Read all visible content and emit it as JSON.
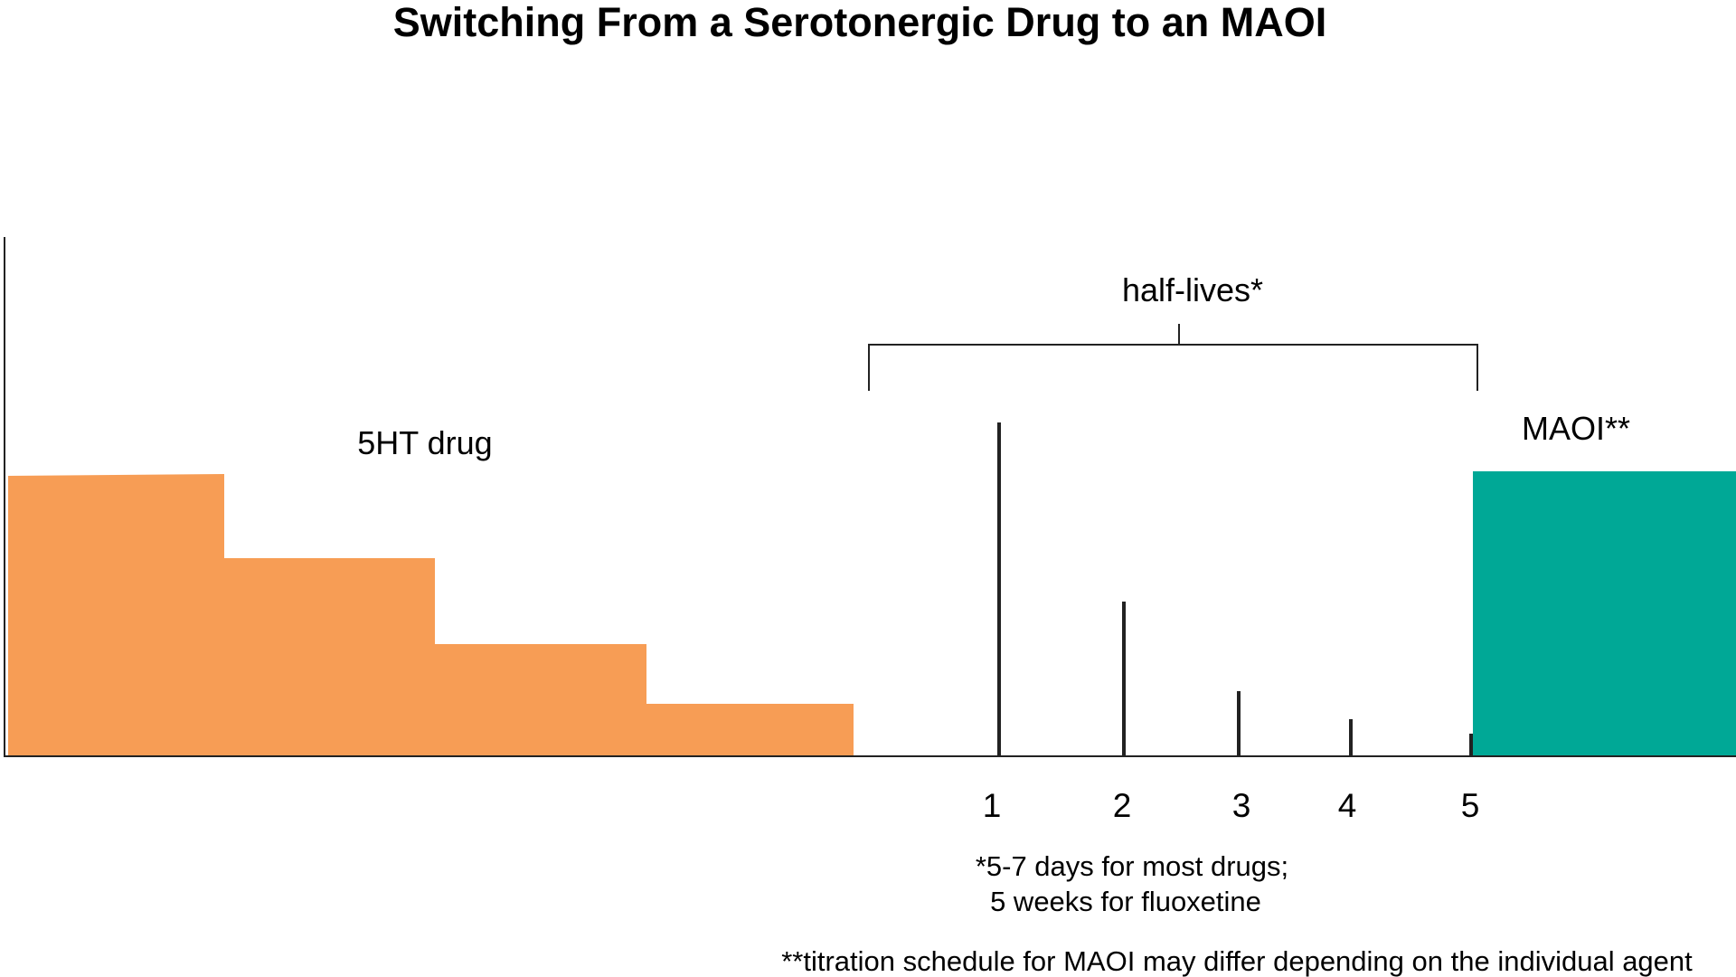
{
  "title": "Switching From a Serotonergic Drug to an MAOI",
  "drug_label": "5HT drug",
  "maoi_label": "MAOI**",
  "half_lives_label": "half-lives*",
  "half_life_ticks": [
    "1",
    "2",
    "3",
    "4",
    "5"
  ],
  "footnote_1_line_1": "*5-7 days for most drugs;",
  "footnote_1_line_2": "5 weeks for fluoxetine",
  "footnote_2": "**titration schedule for MAOI may differ depending on the individual agent",
  "colors": {
    "drug": "#F79D55",
    "maoi": "#00A896",
    "line": "#222222"
  }
}
